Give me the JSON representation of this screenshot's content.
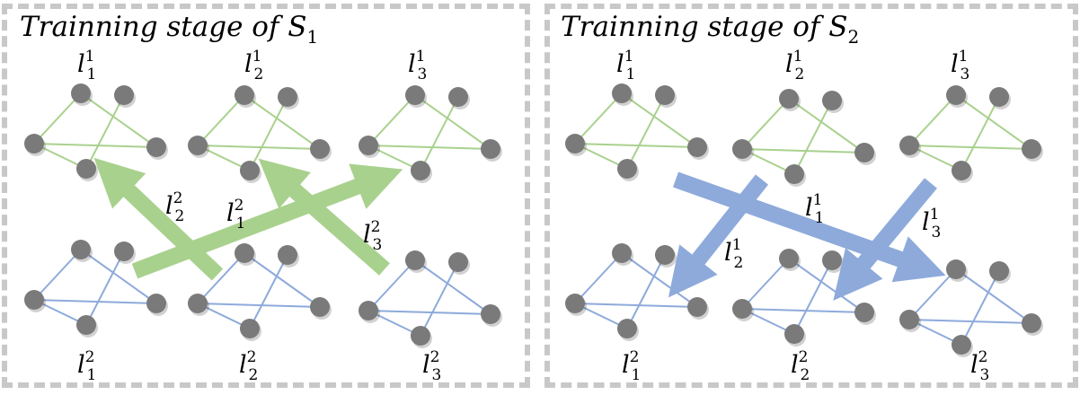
{
  "panels": [
    {
      "title_main": "Trainning stage of S",
      "title_sub": "1",
      "top_labels": [
        {
          "base": "l",
          "sub": "1",
          "sup": "1"
        },
        {
          "base": "l",
          "sub": "2",
          "sup": "1"
        },
        {
          "base": "l",
          "sub": "3",
          "sup": "1"
        }
      ],
      "bottom_labels": [
        {
          "base": "l",
          "sub": "1",
          "sup": "2"
        },
        {
          "base": "l",
          "sub": "2",
          "sup": "2"
        },
        {
          "base": "l",
          "sub": "3",
          "sup": "2"
        }
      ],
      "arrow_labels": [
        {
          "base": "l",
          "sub": "2",
          "sup": "2"
        },
        {
          "base": "l",
          "sub": "1",
          "sup": "2"
        },
        {
          "base": "l",
          "sub": "3",
          "sup": "2"
        }
      ]
    },
    {
      "title_main": "Trainning stage of S",
      "title_sub": "2",
      "top_labels": [
        {
          "base": "l",
          "sub": "1",
          "sup": "1"
        },
        {
          "base": "l",
          "sub": "2",
          "sup": "1"
        },
        {
          "base": "l",
          "sub": "3",
          "sup": "1"
        }
      ],
      "bottom_labels": [
        {
          "base": "l",
          "sub": "1",
          "sup": "2"
        },
        {
          "base": "l",
          "sub": "2",
          "sup": "2"
        },
        {
          "base": "l",
          "sub": "3",
          "sup": "2"
        }
      ],
      "arrow_labels": [
        {
          "base": "l",
          "sub": "2",
          "sup": "1"
        },
        {
          "base": "l",
          "sub": "1",
          "sup": "1"
        },
        {
          "base": "l",
          "sub": "3",
          "sup": "1"
        }
      ]
    }
  ],
  "colors": {
    "node": "#7a7a7a",
    "green_edge": "#a9d18e",
    "blue_edge": "#8eaadb",
    "green_arrow": "#a9d18e",
    "blue_arrow": "#8eaadb",
    "border": "#c8c8c8"
  }
}
